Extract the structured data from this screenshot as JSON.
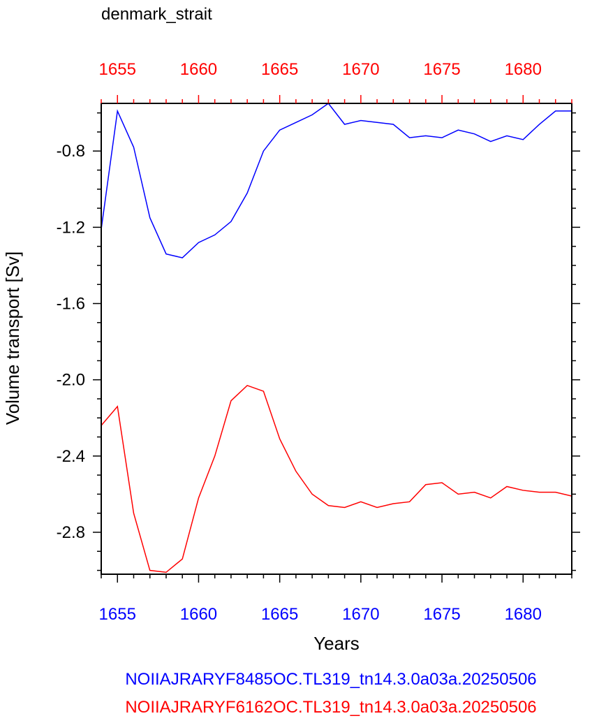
{
  "chart_data": {
    "type": "line",
    "title": "denmark_strait",
    "xlabel": "Years",
    "ylabel": "Volume transport [Sv]",
    "xlim": [
      1654,
      1683
    ],
    "ylim": [
      -3.02,
      -0.55
    ],
    "x_ticks": [
      1655,
      1660,
      1665,
      1670,
      1675,
      1680
    ],
    "x_tick_labels": [
      "1655",
      "1660",
      "1665",
      "1670",
      "1675",
      "1680"
    ],
    "y_ticks": [
      -2.8,
      -2.4,
      -2.0,
      -1.6,
      -1.2,
      -0.8
    ],
    "y_tick_labels": [
      "-2.8",
      "-2.4",
      "-2.0",
      "-1.6",
      "-1.2",
      "-0.8"
    ],
    "grid": false,
    "legend_placement": "bottom",
    "x": [
      1654,
      1655,
      1656,
      1657,
      1658,
      1659,
      1660,
      1661,
      1662,
      1663,
      1664,
      1665,
      1666,
      1667,
      1668,
      1669,
      1670,
      1671,
      1672,
      1673,
      1674,
      1675,
      1676,
      1677,
      1678,
      1679,
      1680,
      1681,
      1682,
      1683
    ],
    "series": [
      {
        "name": "NOIIAJRARYF8485OC.TL319_tn14.3.0a03a.20250506",
        "color": "#0000ff",
        "values": [
          -1.21,
          -0.59,
          -0.78,
          -1.15,
          -1.34,
          -1.36,
          -1.28,
          -1.24,
          -1.17,
          -1.02,
          -0.8,
          -0.69,
          -0.65,
          -0.61,
          -0.55,
          -0.66,
          -0.64,
          -0.65,
          -0.66,
          -0.73,
          -0.72,
          -0.73,
          -0.69,
          -0.71,
          -0.75,
          -0.72,
          -0.74,
          -0.66,
          -0.59,
          -0.59
        ]
      },
      {
        "name": "NOIIAJRARYF6162OC.TL319_tn14.3.0a03a.20250506",
        "color": "#ff0000",
        "values": [
          -2.24,
          -2.14,
          -2.7,
          -3.0,
          -3.01,
          -2.94,
          -2.62,
          -2.4,
          -2.11,
          -2.03,
          -2.06,
          -2.31,
          -2.48,
          -2.6,
          -2.66,
          -2.67,
          -2.64,
          -2.67,
          -2.65,
          -2.64,
          -2.55,
          -2.54,
          -2.6,
          -2.59,
          -2.62,
          -2.56,
          -2.58,
          -2.59,
          -2.59,
          -2.61
        ]
      }
    ],
    "axis_colors": {
      "top_tick_labels": "#ff0000",
      "bottom_tick_labels": "#0000ff",
      "top_ticks": "#ff0000"
    }
  }
}
